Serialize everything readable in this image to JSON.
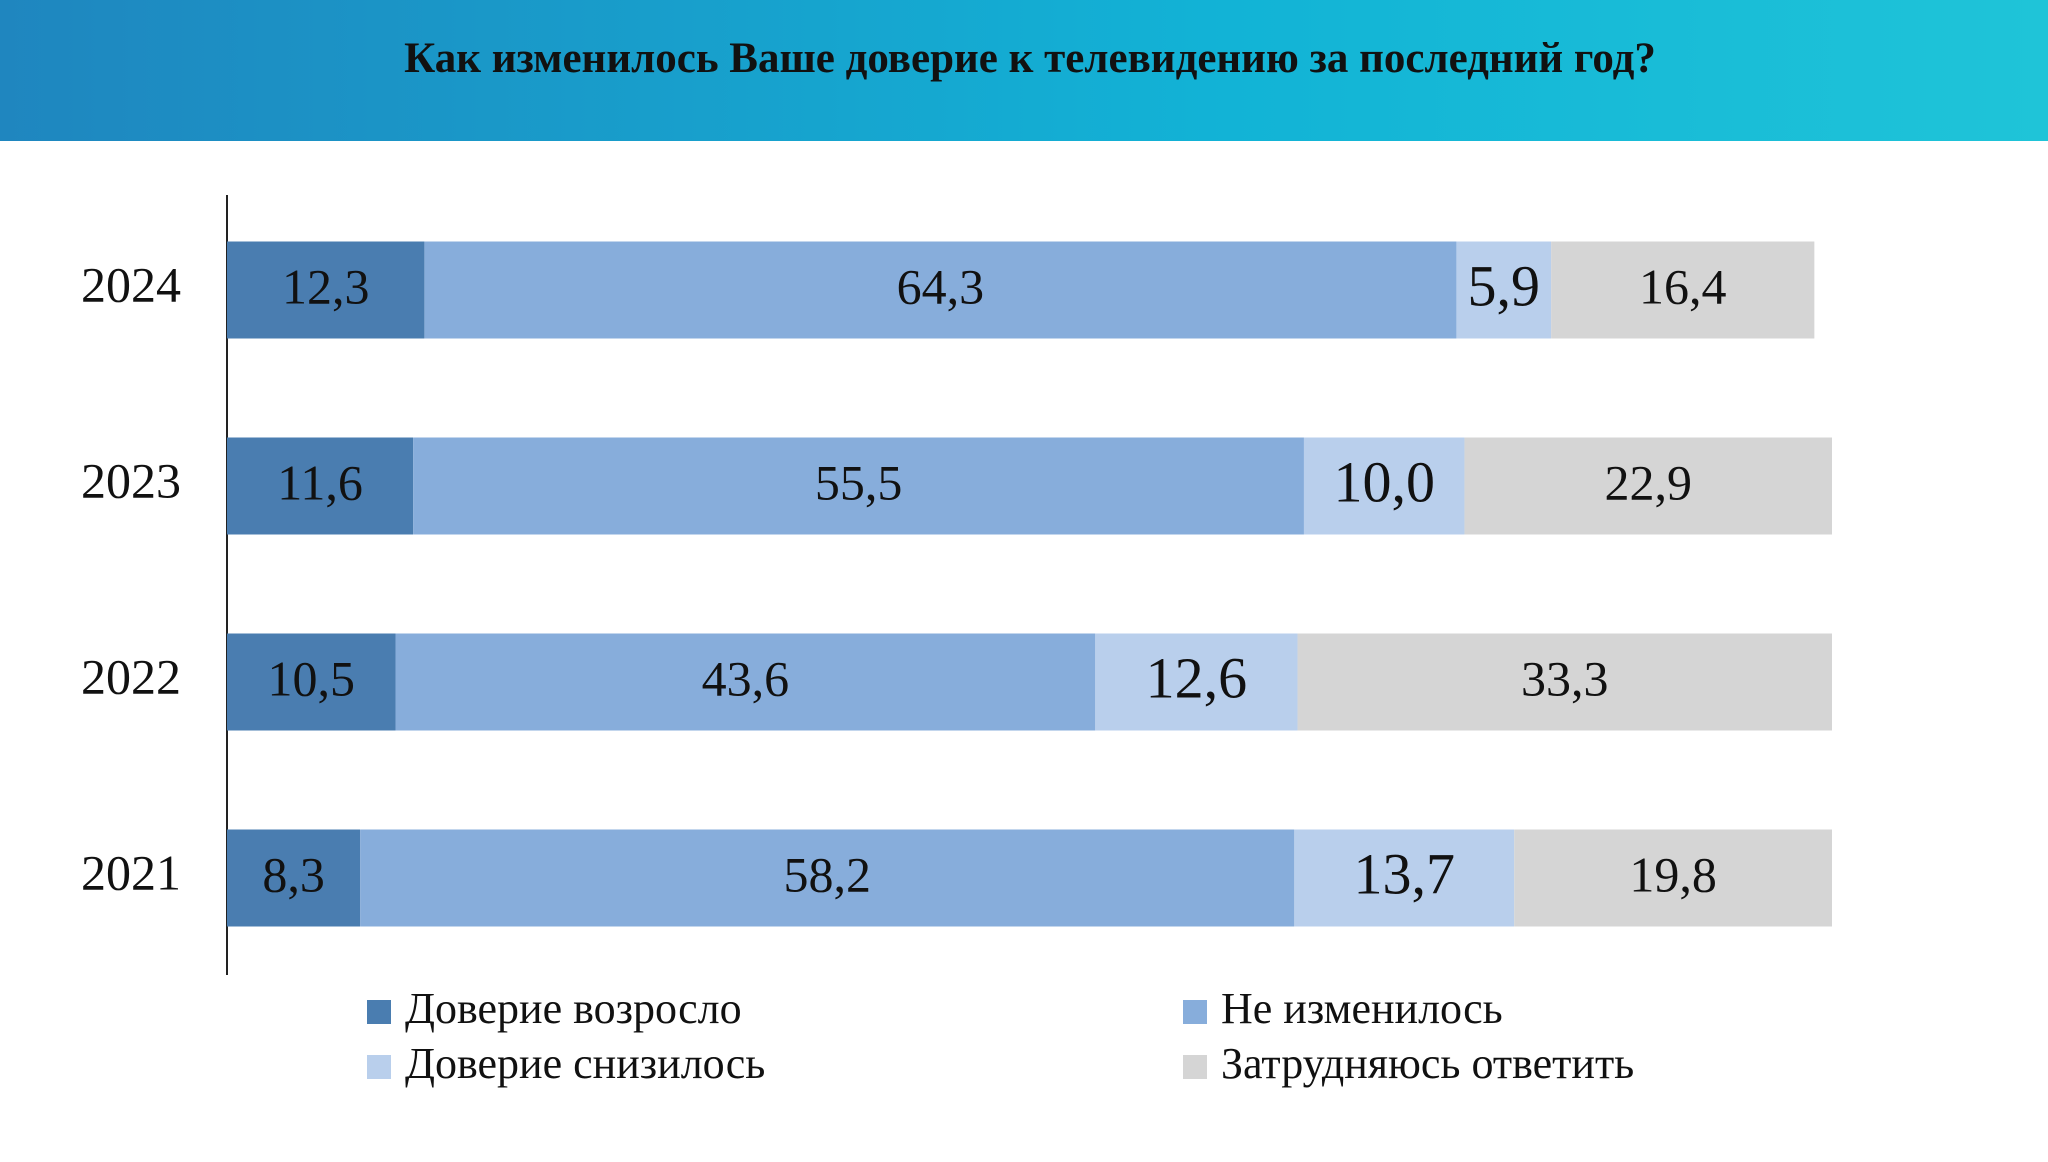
{
  "chart_data": {
    "type": "stacked-bar-horizontal",
    "title": "Как изменилось Ваше доверие к телевидению за последний год?",
    "categories": [
      "2024",
      "2023",
      "2022",
      "2021"
    ],
    "series": [
      {
        "name": "Доверие возросло",
        "color": "#4a7db0",
        "values": [
          12.3,
          11.6,
          10.5,
          8.3
        ],
        "value_labels": [
          "12,3",
          "11,6",
          "10,5",
          "8,3"
        ]
      },
      {
        "name": "Не изменилось",
        "color": "#87addb",
        "values": [
          64.3,
          55.5,
          43.6,
          58.2
        ],
        "value_labels": [
          "64,3",
          "55,5",
          "43,6",
          "58,2"
        ]
      },
      {
        "name": "Доверие снизилось",
        "color": "#b9cfec",
        "values": [
          5.9,
          10.0,
          12.6,
          13.7
        ],
        "value_labels": [
          "5,9",
          "10,0",
          "12,6",
          "13,7"
        ]
      },
      {
        "name": "Затрудняюсь ответить",
        "color": "#d5d5d5",
        "values": [
          16.4,
          22.9,
          33.3,
          19.8
        ],
        "value_labels": [
          "16,4",
          "22,9",
          "33,3",
          "19,8"
        ]
      }
    ],
    "xlim": [
      0,
      100
    ]
  }
}
